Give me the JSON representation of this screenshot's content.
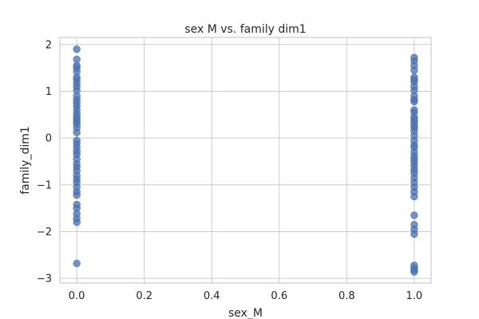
{
  "chart_data": {
    "type": "scatter",
    "title": "sex M vs. family dim1",
    "xlabel": "sex_M",
    "ylabel": "family_dim1",
    "xlim": [
      -0.05,
      1.05
    ],
    "ylim": [
      -3.1,
      2.15
    ],
    "xticks": [
      0.0,
      0.2,
      0.4,
      0.6,
      0.8,
      1.0
    ],
    "xtick_labels": [
      "0.0",
      "0.2",
      "0.4",
      "0.6",
      "0.8",
      "1.0"
    ],
    "yticks": [
      -3,
      -2,
      -1,
      0,
      1,
      2
    ],
    "ytick_labels": [
      "−3",
      "−2",
      "−1",
      "0",
      "1",
      "2"
    ],
    "grid": true,
    "series": [
      {
        "color": "#4c72b0",
        "points": [
          {
            "x": 0,
            "y": 1.9
          },
          {
            "x": 0,
            "y": 1.68
          },
          {
            "x": 0,
            "y": 1.55
          },
          {
            "x": 0,
            "y": 1.5
          },
          {
            "x": 0,
            "y": 1.42
          },
          {
            "x": 0,
            "y": 1.3
          },
          {
            "x": 0,
            "y": 1.25
          },
          {
            "x": 0,
            "y": 1.18
          },
          {
            "x": 0,
            "y": 1.1
          },
          {
            "x": 0,
            "y": 1.02
          },
          {
            "x": 0,
            "y": 0.9
          },
          {
            "x": 0,
            "y": 0.82
          },
          {
            "x": 0,
            "y": 0.75
          },
          {
            "x": 0,
            "y": 0.68
          },
          {
            "x": 0,
            "y": 0.6
          },
          {
            "x": 0,
            "y": 0.52
          },
          {
            "x": 0,
            "y": 0.45
          },
          {
            "x": 0,
            "y": 0.4
          },
          {
            "x": 0,
            "y": 0.35
          },
          {
            "x": 0,
            "y": 0.3
          },
          {
            "x": 0,
            "y": 0.22
          },
          {
            "x": 0,
            "y": 0.12
          },
          {
            "x": 0,
            "y": -0.05
          },
          {
            "x": 0,
            "y": -0.12
          },
          {
            "x": 0,
            "y": -0.2
          },
          {
            "x": 0,
            "y": -0.28
          },
          {
            "x": 0,
            "y": -0.35
          },
          {
            "x": 0,
            "y": -0.45
          },
          {
            "x": 0,
            "y": -0.55
          },
          {
            "x": 0,
            "y": -0.62
          },
          {
            "x": 0,
            "y": -0.7
          },
          {
            "x": 0,
            "y": -0.8
          },
          {
            "x": 0,
            "y": -0.88
          },
          {
            "x": 0,
            "y": -0.95
          },
          {
            "x": 0,
            "y": -1.05
          },
          {
            "x": 0,
            "y": -1.15
          },
          {
            "x": 0,
            "y": -1.22
          },
          {
            "x": 0,
            "y": -1.42
          },
          {
            "x": 0,
            "y": -1.5
          },
          {
            "x": 0,
            "y": -1.62
          },
          {
            "x": 0,
            "y": -1.72
          },
          {
            "x": 0,
            "y": -1.8
          },
          {
            "x": 0,
            "y": -2.68
          },
          {
            "x": 1,
            "y": 1.72
          },
          {
            "x": 1,
            "y": 1.65
          },
          {
            "x": 1,
            "y": 1.55
          },
          {
            "x": 1,
            "y": 1.45
          },
          {
            "x": 1,
            "y": 1.3
          },
          {
            "x": 1,
            "y": 1.25
          },
          {
            "x": 1,
            "y": 1.2
          },
          {
            "x": 1,
            "y": 1.1
          },
          {
            "x": 1,
            "y": 1.02
          },
          {
            "x": 1,
            "y": 0.9
          },
          {
            "x": 1,
            "y": 0.82
          },
          {
            "x": 1,
            "y": 0.78
          },
          {
            "x": 1,
            "y": 0.6
          },
          {
            "x": 1,
            "y": 0.55
          },
          {
            "x": 1,
            "y": 0.45
          },
          {
            "x": 1,
            "y": 0.4
          },
          {
            "x": 1,
            "y": 0.35
          },
          {
            "x": 1,
            "y": 0.28
          },
          {
            "x": 1,
            "y": 0.22
          },
          {
            "x": 1,
            "y": 0.15
          },
          {
            "x": 1,
            "y": 0.05
          },
          {
            "x": 1,
            "y": -0.05
          },
          {
            "x": 1,
            "y": -0.15
          },
          {
            "x": 1,
            "y": -0.2
          },
          {
            "x": 1,
            "y": -0.3
          },
          {
            "x": 1,
            "y": -0.38
          },
          {
            "x": 1,
            "y": -0.45
          },
          {
            "x": 1,
            "y": -0.52
          },
          {
            "x": 1,
            "y": -0.6
          },
          {
            "x": 1,
            "y": -0.68
          },
          {
            "x": 1,
            "y": -0.75
          },
          {
            "x": 1,
            "y": -0.85
          },
          {
            "x": 1,
            "y": -0.95
          },
          {
            "x": 1,
            "y": -1.05
          },
          {
            "x": 1,
            "y": -1.15
          },
          {
            "x": 1,
            "y": -1.25
          },
          {
            "x": 1,
            "y": -1.65
          },
          {
            "x": 1,
            "y": -1.85
          },
          {
            "x": 1,
            "y": -1.95
          },
          {
            "x": 1,
            "y": -2.05
          },
          {
            "x": 1,
            "y": -2.72
          },
          {
            "x": 1,
            "y": -2.78
          },
          {
            "x": 1,
            "y": -2.82
          },
          {
            "x": 1,
            "y": -2.86
          }
        ]
      }
    ]
  }
}
